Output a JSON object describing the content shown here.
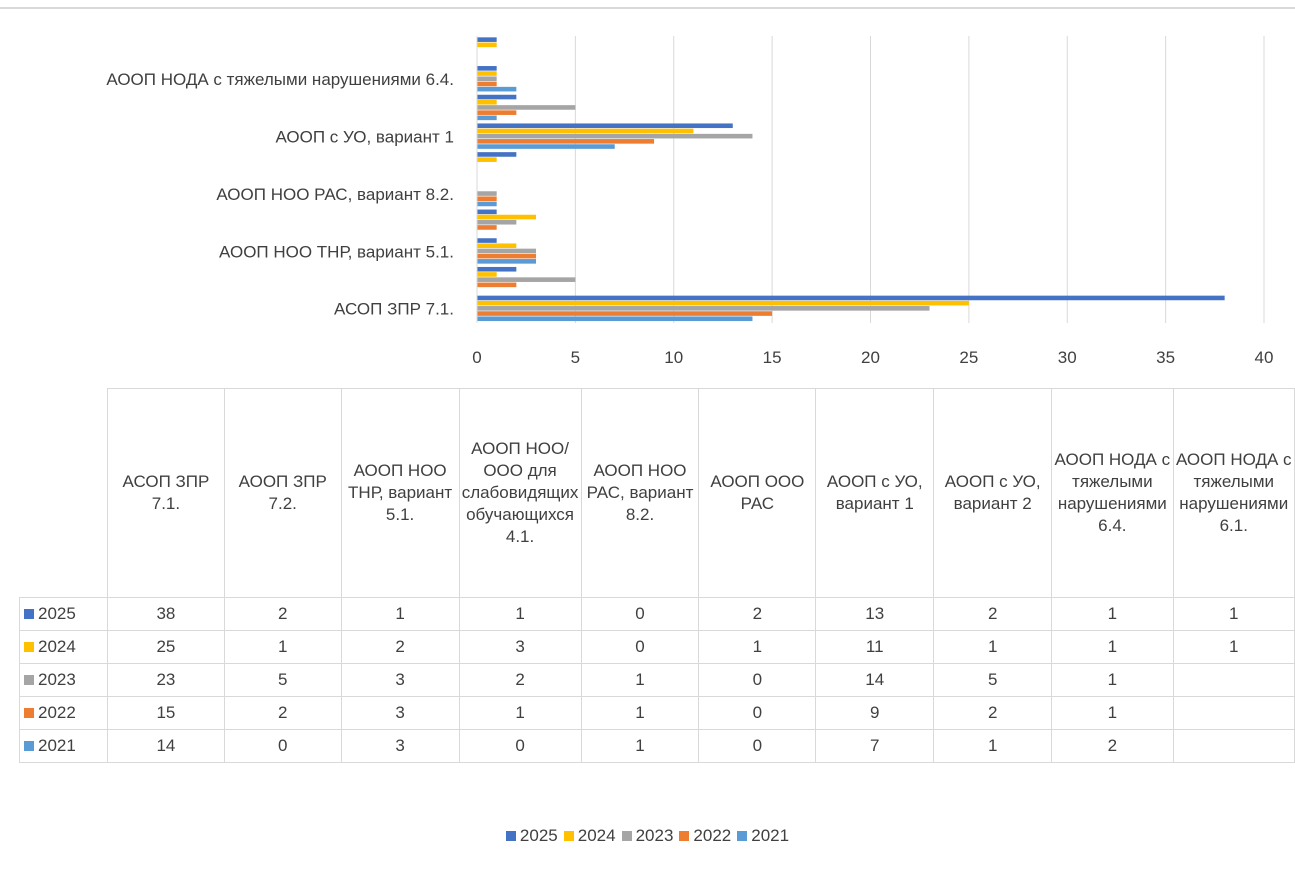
{
  "chart_data": {
    "type": "bar",
    "orientation": "horizontal",
    "categories": [
      "АСОП ЗПР 7.1.",
      "АООП ЗПР 7.2.",
      "АООП НОО ТНР, вариант 5.1.",
      "АООП НОО/ООО для слабовидящих обучающихся 4.1.",
      "АООП НОО РАС, вариант 8.2.",
      "АООП ООО РАС",
      "АООП с УО, вариант 1",
      "АООП с УО, вариант 2",
      "АООП НОДА с тяжелыми нарушениями 6.4.",
      "АООП НОДА с тяжелыми нарушениями 6.1."
    ],
    "visible_axis_labels": {
      "0": "АСОП ЗПР 7.1.",
      "2": "АООП НОО ТНР, вариант 5.1.",
      "4": "АООП НОО РАС, вариант 8.2.",
      "6": "АООП с УО, вариант 1",
      "8": "АООП НОДА с тяжелыми нарушениями 6.4."
    },
    "table_headers": [
      "АСОП ЗПР 7.1.",
      "АООП ЗПР 7.2.",
      "АООП НОО ТНР, вариант 5.1.",
      "АООП НОО/ООО для слабовидящих обучающихся 4.1.",
      "АООП НОО РАС, вариант 8.2.",
      "АООП ООО РАС",
      "АООП с УО, вариант 1",
      "АООП с УО, вариант 2",
      "АООП НОДА с тяжелыми нарушениями 6.4.",
      "АООП НОДА с тяжелыми нарушениями 6.1."
    ],
    "series": [
      {
        "name": "2025",
        "color": "#4472c4",
        "values": [
          38,
          2,
          1,
          1,
          0,
          2,
          13,
          2,
          1,
          1
        ]
      },
      {
        "name": "2024",
        "color": "#ffc000",
        "values": [
          25,
          1,
          2,
          3,
          0,
          1,
          11,
          1,
          1,
          1
        ]
      },
      {
        "name": "2023",
        "color": "#a5a5a5",
        "values": [
          23,
          5,
          3,
          2,
          1,
          0,
          14,
          5,
          1,
          null
        ]
      },
      {
        "name": "2022",
        "color": "#ed7d31",
        "values": [
          15,
          2,
          3,
          1,
          1,
          0,
          9,
          2,
          1,
          null
        ]
      },
      {
        "name": "2021",
        "color": "#5b9bd5",
        "values": [
          14,
          0,
          3,
          0,
          1,
          0,
          7,
          1,
          2,
          null
        ]
      }
    ],
    "xlim": [
      0,
      40
    ],
    "xticks": [
      "0",
      "5",
      "10",
      "15",
      "20",
      "25",
      "30",
      "35",
      "40"
    ],
    "grid": true,
    "legend_position": "bottom"
  }
}
